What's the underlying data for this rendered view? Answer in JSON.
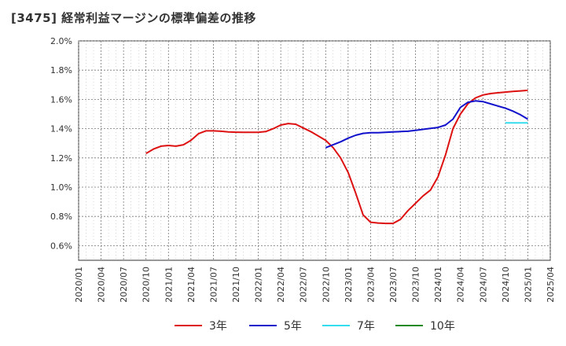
{
  "chart_data": {
    "type": "line",
    "title": "[3475]  経常利益マージンの標準偏差の推移",
    "xlabel": "",
    "ylabel": "",
    "ylim": [
      0.5,
      2.0
    ],
    "y_ticks": [
      "0.6%",
      "0.8%",
      "1.0%",
      "1.2%",
      "1.4%",
      "1.6%",
      "1.8%",
      "2.0%"
    ],
    "x_ticks": [
      "2020/01",
      "2020/04",
      "2020/07",
      "2020/10",
      "2021/01",
      "2021/04",
      "2021/07",
      "2021/10",
      "2022/01",
      "2022/04",
      "2022/07",
      "2022/10",
      "2023/01",
      "2023/04",
      "2023/07",
      "2023/10",
      "2024/01",
      "2024/04",
      "2024/07",
      "2024/10",
      "2025/01",
      "2025/04"
    ],
    "grid": true,
    "legend_position": "bottom",
    "series": [
      {
        "name": "3年",
        "color": "#dd1111",
        "x": [
          "2020/10",
          "2020/11",
          "2020/12",
          "2021/01",
          "2021/02",
          "2021/03",
          "2021/04",
          "2021/05",
          "2021/06",
          "2021/07",
          "2021/08",
          "2021/09",
          "2021/10",
          "2021/11",
          "2021/12",
          "2022/01",
          "2022/02",
          "2022/03",
          "2022/04",
          "2022/05",
          "2022/06",
          "2022/07",
          "2022/08",
          "2022/09",
          "2022/10",
          "2022/11",
          "2022/12",
          "2023/01",
          "2023/02",
          "2023/03",
          "2023/04",
          "2023/05",
          "2023/06",
          "2023/07",
          "2023/08",
          "2023/09",
          "2023/10",
          "2023/11",
          "2023/12",
          "2024/01",
          "2024/02",
          "2024/03",
          "2024/04",
          "2024/05",
          "2024/06",
          "2024/07",
          "2024/08",
          "2024/09",
          "2024/10",
          "2024/11",
          "2024/12",
          "2025/01"
        ],
        "values": [
          1.23,
          1.26,
          1.28,
          1.285,
          1.28,
          1.29,
          1.32,
          1.365,
          1.385,
          1.385,
          1.382,
          1.378,
          1.376,
          1.375,
          1.375,
          1.375,
          1.38,
          1.4,
          1.425,
          1.435,
          1.43,
          1.405,
          1.38,
          1.35,
          1.32,
          1.27,
          1.2,
          1.1,
          0.96,
          0.81,
          0.76,
          0.755,
          0.752,
          0.752,
          0.78,
          0.84,
          0.89,
          0.94,
          0.98,
          1.07,
          1.22,
          1.4,
          1.5,
          1.57,
          1.61,
          1.63,
          1.64,
          1.645,
          1.65,
          1.655,
          1.658,
          1.662
        ]
      },
      {
        "name": "5年",
        "color": "#1111cc",
        "x": [
          "2022/10",
          "2022/11",
          "2022/12",
          "2023/01",
          "2023/02",
          "2023/03",
          "2023/04",
          "2023/05",
          "2023/06",
          "2023/07",
          "2023/08",
          "2023/09",
          "2023/10",
          "2023/11",
          "2023/12",
          "2024/01",
          "2024/02",
          "2024/03",
          "2024/04",
          "2024/05",
          "2024/06",
          "2024/07",
          "2024/08",
          "2024/09",
          "2024/10",
          "2024/11",
          "2024/12",
          "2025/01"
        ],
        "values": [
          1.27,
          1.29,
          1.31,
          1.335,
          1.355,
          1.368,
          1.372,
          1.372,
          1.375,
          1.378,
          1.38,
          1.382,
          1.388,
          1.395,
          1.402,
          1.408,
          1.425,
          1.465,
          1.545,
          1.58,
          1.59,
          1.585,
          1.57,
          1.555,
          1.54,
          1.52,
          1.495,
          1.465
        ]
      },
      {
        "name": "7年",
        "color": "#33ddee",
        "x": [
          "2024/10",
          "2024/11",
          "2024/12",
          "2025/01"
        ],
        "values": [
          1.44,
          1.44,
          1.44,
          1.44
        ]
      },
      {
        "name": "10年",
        "color": "#228822",
        "x": [],
        "values": []
      }
    ]
  }
}
